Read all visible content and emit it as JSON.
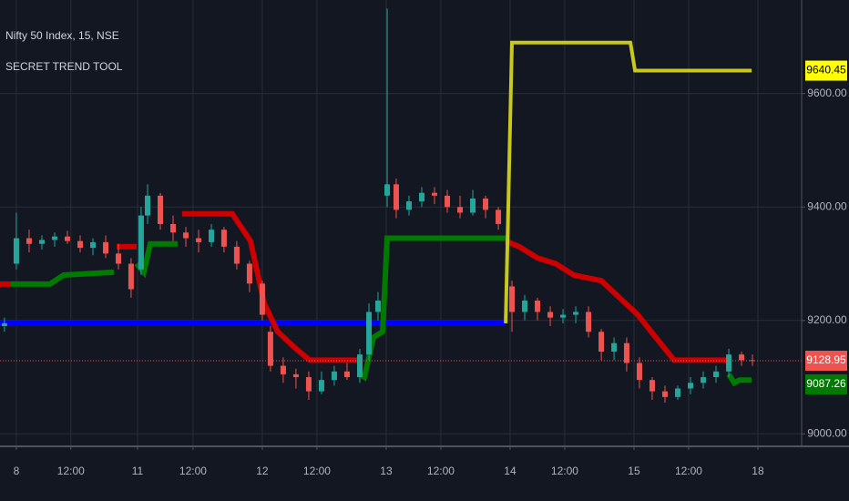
{
  "chart_data": {
    "type": "candlestick",
    "title": "Nifty 50 Index, 15, NSE",
    "subtitle": "SECRET TREND TOOL",
    "xlim": [
      -0.132,
      6.338
    ],
    "xticks": [
      {
        "value": 0,
        "label": "8"
      },
      {
        "value": 0.44,
        "label": "12:00"
      },
      {
        "value": 0.978,
        "label": "11"
      },
      {
        "value": 1.426,
        "label": "12:00"
      },
      {
        "value": 1.985,
        "label": "12"
      },
      {
        "value": 2.426,
        "label": "12:00"
      },
      {
        "value": 2.985,
        "label": "13"
      },
      {
        "value": 3.426,
        "label": "12:00"
      },
      {
        "value": 3.985,
        "label": "14"
      },
      {
        "value": 4.426,
        "label": "12:00"
      },
      {
        "value": 4.985,
        "label": "15"
      },
      {
        "value": 5.426,
        "label": "12:00"
      },
      {
        "value": 5.985,
        "label": "18"
      }
    ],
    "ylim": [
      8978,
      9765
    ],
    "yticks": [
      {
        "value": 9000,
        "label": "9000.00"
      },
      {
        "value": 9200,
        "label": "9200.00"
      },
      {
        "value": 9400,
        "label": "9400.00"
      },
      {
        "value": 9600,
        "label": "9600.00"
      }
    ],
    "grid": true,
    "up_color": "#26a69a",
    "down_color": "#ef5350",
    "candles": {
      "x": [
        -0.096,
        0,
        0.103,
        0.206,
        0.309,
        0.412,
        0.515,
        0.618,
        0.721,
        0.824,
        0.926,
        1.007,
        1.059,
        1.162,
        1.265,
        1.368,
        1.471,
        1.574,
        1.676,
        1.779,
        1.882,
        1.985,
        2.051,
        2.154,
        2.257,
        2.36,
        2.463,
        2.566,
        2.669,
        2.772,
        2.846,
        2.919,
        2.993,
        3.066,
        3.169,
        3.272,
        3.375,
        3.478,
        3.581,
        3.684,
        3.787,
        3.89,
        4.0,
        4.103,
        4.206,
        4.309,
        4.412,
        4.515,
        4.618,
        4.721,
        4.824,
        4.926,
        5.029,
        5.132,
        5.235,
        5.338,
        5.441,
        5.544,
        5.647,
        5.75,
        5.853,
        5.941
      ],
      "open": [
        9190,
        9300,
        9345,
        9335,
        9342,
        9348,
        9340,
        9328,
        9338,
        9318,
        9300,
        9290,
        9385,
        9420,
        9370,
        9355,
        9345,
        9338,
        9360,
        9330,
        9300,
        9265,
        9180,
        9120,
        9105,
        9100,
        9075,
        9095,
        9110,
        9100,
        9140,
        9215,
        9420,
        9440,
        9395,
        9410,
        9425,
        9420,
        9400,
        9390,
        9415,
        9395,
        9260,
        9215,
        9235,
        9215,
        9205,
        9210,
        9215,
        9180,
        9145,
        9160,
        9125,
        9095,
        9075,
        9065,
        9080,
        9090,
        9100,
        9110,
        9140,
        9130
      ],
      "high": [
        9205,
        9390,
        9360,
        9350,
        9355,
        9358,
        9350,
        9345,
        9350,
        9335,
        9310,
        9400,
        9440,
        9425,
        9385,
        9365,
        9360,
        9370,
        9365,
        9340,
        9305,
        9270,
        9190,
        9135,
        9115,
        9110,
        9110,
        9120,
        9125,
        9150,
        9230,
        9250,
        9750,
        9450,
        9420,
        9435,
        9435,
        9430,
        9420,
        9430,
        9420,
        9400,
        9270,
        9245,
        9240,
        9225,
        9220,
        9225,
        9225,
        9185,
        9170,
        9170,
        9135,
        9100,
        9085,
        9085,
        9100,
        9110,
        9120,
        9150,
        9145,
        9140
      ],
      "low": [
        9180,
        9290,
        9320,
        9325,
        9330,
        9335,
        9320,
        9315,
        9310,
        9290,
        9240,
        9280,
        9370,
        9360,
        9340,
        9330,
        9320,
        9330,
        9320,
        9290,
        9250,
        9200,
        9110,
        9090,
        9080,
        9060,
        9070,
        9085,
        9095,
        9090,
        9130,
        9200,
        9400,
        9380,
        9385,
        9400,
        9405,
        9390,
        9380,
        9385,
        9380,
        9360,
        9180,
        9200,
        9200,
        9190,
        9195,
        9195,
        9170,
        9130,
        9130,
        9110,
        9080,
        9060,
        9055,
        9060,
        9070,
        9080,
        9090,
        9100,
        9120,
        9120
      ],
      "close": [
        9195,
        9345,
        9335,
        9342,
        9348,
        9340,
        9328,
        9338,
        9318,
        9300,
        9255,
        9385,
        9420,
        9370,
        9355,
        9345,
        9338,
        9360,
        9330,
        9300,
        9265,
        9210,
        9120,
        9105,
        9100,
        9075,
        9095,
        9110,
        9100,
        9140,
        9215,
        9235,
        9440,
        9395,
        9410,
        9425,
        9420,
        9400,
        9390,
        9415,
        9395,
        9370,
        9215,
        9235,
        9215,
        9205,
        9210,
        9215,
        9180,
        9145,
        9160,
        9125,
        9095,
        9075,
        9065,
        9080,
        9090,
        9100,
        9110,
        9140,
        9130,
        9129
      ]
    },
    "series": [
      {
        "color": "#0000ff",
        "width": 6,
        "x": [
          -0.132,
          3.949
        ],
        "values": [
          9195,
          9195
        ]
      },
      {
        "color": "#cc0000",
        "width": 6,
        "x": [
          -0.132,
          -0.044,
          null,
          0.809,
          0.971,
          null,
          1.338,
          1.743,
          1.89,
          2.0,
          2.11,
          2.257,
          2.368,
          2.772,
          null,
          3.949,
          4.059,
          4.206,
          4.353,
          4.5,
          4.721,
          5.015,
          5.162,
          5.309,
          5.75
        ],
        "values": [
          9264,
          9264,
          null,
          9330,
          9330,
          null,
          9388,
          9388,
          9340,
          9230,
          9180,
          9150,
          9130,
          9130,
          null,
          9340,
          9330,
          9310,
          9300,
          9280,
          9270,
          9210,
          9170,
          9130,
          9130
        ]
      },
      {
        "color": "#007a00",
        "width": 6,
        "x": [
          -0.044,
          0.272,
          0.382,
          0.787,
          null,
          0.971,
          1.029,
          1.081,
          1.301,
          null,
          2.772,
          2.809,
          2.882,
          2.956,
          2.993,
          3.949,
          null,
          5.75,
          5.794,
          5.838,
          5.934
        ],
        "values": [
          9264,
          9264,
          9280,
          9285,
          null,
          9300,
          9285,
          9335,
          9335,
          null,
          9105,
          9100,
          9170,
          9180,
          9345,
          9345,
          null,
          9105,
          9090,
          9095,
          9095
        ]
      },
      {
        "color": "#c8c81e",
        "width": 4,
        "x": [
          3.949,
          4.0,
          4.956,
          4.993,
          5.934
        ],
        "values": [
          9195,
          9690,
          9690,
          9640.45,
          9640.45
        ]
      }
    ],
    "price_tags": [
      {
        "value": 9640.45,
        "color": "#ffff00"
      },
      {
        "value": 9128.95,
        "color": "#ef5350"
      },
      {
        "value": 9087.26,
        "color": "#007a00"
      }
    ]
  }
}
